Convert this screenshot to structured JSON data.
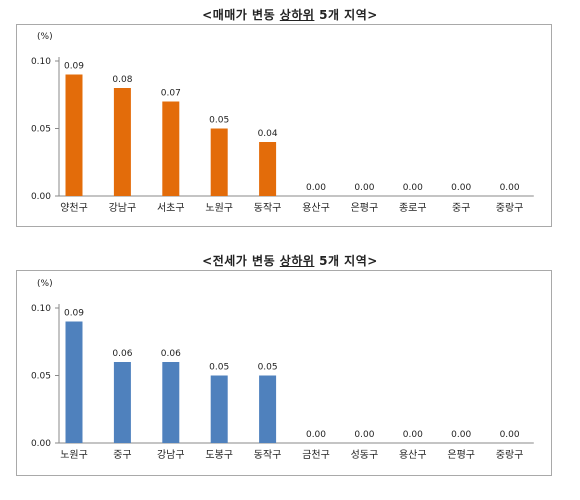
{
  "chart_data": [
    {
      "type": "bar",
      "title_prefix": "<매매가 변동 ",
      "title_underlined": "상하위",
      "title_suffix": " 5개 지역>",
      "unit_label": "(%)",
      "categories": [
        "양천구",
        "강남구",
        "서초구",
        "노원구",
        "동작구",
        "용산구",
        "은평구",
        "종로구",
        "중구",
        "중랑구"
      ],
      "values": [
        0.09,
        0.08,
        0.07,
        0.05,
        0.04,
        0.0,
        0.0,
        0.0,
        0.0,
        0.0
      ],
      "value_labels": [
        "0.09",
        "0.08",
        "0.07",
        "0.05",
        "0.04",
        "0.00",
        "0.00",
        "0.00",
        "0.00",
        "0.00"
      ],
      "yticks": [
        "0.00",
        "0.05",
        "0.10"
      ],
      "ylim": [
        0,
        0.1
      ],
      "color": "#E36C0A",
      "grid": false
    },
    {
      "type": "bar",
      "title_prefix": "<전세가 변동 ",
      "title_underlined": "상하위",
      "title_suffix": " 5개 지역>",
      "unit_label": "(%)",
      "categories": [
        "노원구",
        "중구",
        "강남구",
        "도봉구",
        "동작구",
        "금천구",
        "성동구",
        "용산구",
        "은평구",
        "중랑구"
      ],
      "values": [
        0.09,
        0.06,
        0.06,
        0.05,
        0.05,
        0.0,
        0.0,
        0.0,
        0.0,
        0.0
      ],
      "value_labels": [
        "0.09",
        "0.06",
        "0.06",
        "0.05",
        "0.05",
        "0.00",
        "0.00",
        "0.00",
        "0.00",
        "0.00"
      ],
      "yticks": [
        "0.00",
        "0.05",
        "0.10"
      ],
      "ylim": [
        0,
        0.1
      ],
      "color": "#4F81BD",
      "grid": false
    }
  ]
}
